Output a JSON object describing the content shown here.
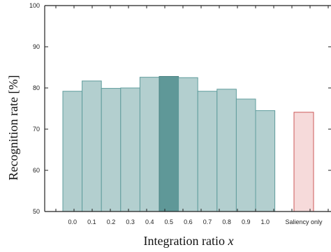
{
  "chart_data": {
    "type": "bar",
    "xlabel": "Integration ratio x",
    "ylabel": "Recognition rate [%]",
    "ylim": [
      50,
      100
    ],
    "yticks": [
      50,
      60,
      70,
      80,
      90,
      100
    ],
    "categories": [
      "0.0",
      "0.1",
      "0.2",
      "0.3",
      "0.4",
      "0.5",
      "0.6",
      "0.7",
      "0.8",
      "0.9",
      "1.0",
      "Saliency only"
    ],
    "values": [
      79.2,
      81.7,
      79.9,
      80.0,
      82.6,
      82.8,
      82.5,
      79.2,
      79.7,
      77.3,
      74.5,
      74.1
    ],
    "highlight_index": 5,
    "grid": false,
    "colors": {
      "bar_fill": "#b3cfcf",
      "bar_stroke": "#5f9c9c",
      "highlight_fill": "#5f9898",
      "highlight_stroke": "#4b8484",
      "saliency_fill": "#f6dada",
      "saliency_stroke": "#cc5858",
      "axis": "#222222"
    }
  }
}
